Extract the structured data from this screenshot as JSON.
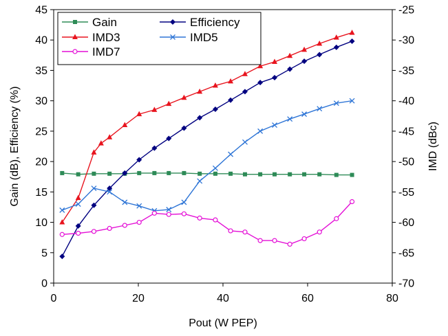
{
  "chart_data": {
    "type": "line",
    "xlabel": "Pout (W PEP)",
    "ylabel_left": "Gain (dB), Efficiency (%)",
    "ylabel_right": "IMD (dBc)",
    "xlim": [
      0,
      80
    ],
    "ylim_left": [
      0,
      45
    ],
    "ylim_right": [
      -70,
      -25
    ],
    "xticks": [
      0,
      20,
      40,
      60,
      80
    ],
    "yticks_left": [
      0,
      5,
      10,
      15,
      20,
      25,
      30,
      35,
      40,
      45
    ],
    "yticks_right": [
      -70,
      -65,
      -60,
      -55,
      -50,
      -45,
      -40,
      -35,
      -30,
      -25
    ],
    "grid": false,
    "legend_position": "top-left",
    "series": [
      {
        "name": "Gain",
        "axis": "left",
        "color": "#2e8b57",
        "marker": "square",
        "x": [
          2,
          5.8,
          9.5,
          13.2,
          16.8,
          20.2,
          23.8,
          27.2,
          30.8,
          34.5,
          38.2,
          41.8,
          45.2,
          48.8,
          52.2,
          55.8,
          59.2,
          62.8,
          66.8,
          70.5
        ],
        "y": [
          18.1,
          17.9,
          18.0,
          18.0,
          18.0,
          18.1,
          18.1,
          18.1,
          18.1,
          18.0,
          18.0,
          18.0,
          17.9,
          17.9,
          17.9,
          17.9,
          17.9,
          17.9,
          17.8,
          17.8
        ]
      },
      {
        "name": "Efficiency",
        "axis": "left",
        "color": "#000080",
        "marker": "diamond",
        "x": [
          2,
          5.8,
          9.5,
          13.2,
          16.8,
          20.2,
          23.8,
          27.2,
          30.8,
          34.5,
          38.2,
          41.8,
          45.2,
          48.8,
          52.2,
          55.8,
          59.2,
          62.8,
          66.8,
          70.5
        ],
        "y": [
          4.4,
          9.4,
          12.8,
          15.6,
          18.1,
          20.3,
          22.2,
          23.8,
          25.5,
          27.2,
          28.6,
          30.1,
          31.5,
          33.0,
          33.8,
          35.2,
          36.5,
          37.6,
          38.8,
          39.8
        ]
      },
      {
        "name": "IMD3",
        "axis": "right",
        "color": "#e8141e",
        "marker": "triangle",
        "x": [
          2,
          5.8,
          9.5,
          11.2,
          13.2,
          16.8,
          20.2,
          23.8,
          27.2,
          30.8,
          34.5,
          38.2,
          41.8,
          45.2,
          48.8,
          52.2,
          55.8,
          59.2,
          62.8,
          66.8,
          70.5
        ],
        "y": [
          -60.0,
          -56.0,
          -48.5,
          -47.0,
          -46.0,
          -44.0,
          -42.2,
          -41.5,
          -40.5,
          -39.5,
          -38.5,
          -37.5,
          -36.8,
          -35.6,
          -34.3,
          -33.6,
          -32.6,
          -31.6,
          -30.6,
          -29.6,
          -28.8
        ]
      },
      {
        "name": "IMD5",
        "axis": "right",
        "color": "#2e75d6",
        "marker": "x",
        "x": [
          2,
          5.8,
          9.5,
          13.2,
          16.8,
          20.2,
          23.8,
          27.2,
          30.8,
          34.5,
          38.2,
          41.8,
          45.2,
          48.8,
          52.2,
          55.8,
          59.2,
          62.8,
          66.8,
          70.5
        ],
        "y": [
          -58.0,
          -57.0,
          -54.4,
          -55.0,
          -56.7,
          -57.3,
          -58.1,
          -57.9,
          -56.7,
          -53.2,
          -51.1,
          -48.8,
          -46.8,
          -45.0,
          -44.0,
          -43.0,
          -42.2,
          -41.3,
          -40.4,
          -40.0
        ]
      },
      {
        "name": "IMD7",
        "axis": "right",
        "color": "#e40fd6",
        "marker": "circle",
        "x": [
          2,
          5.8,
          9.5,
          13.2,
          16.8,
          20.2,
          23.8,
          27.2,
          30.8,
          34.5,
          38.2,
          41.8,
          45.2,
          48.8,
          52.2,
          55.8,
          59.2,
          62.8,
          66.8,
          70.5
        ],
        "y": [
          -62.0,
          -61.8,
          -61.5,
          -61.0,
          -60.5,
          -60.0,
          -58.5,
          -58.7,
          -58.6,
          -59.3,
          -59.6,
          -61.4,
          -61.6,
          -63.0,
          -63.0,
          -63.6,
          -62.7,
          -61.6,
          -59.4,
          -56.6
        ]
      }
    ]
  }
}
